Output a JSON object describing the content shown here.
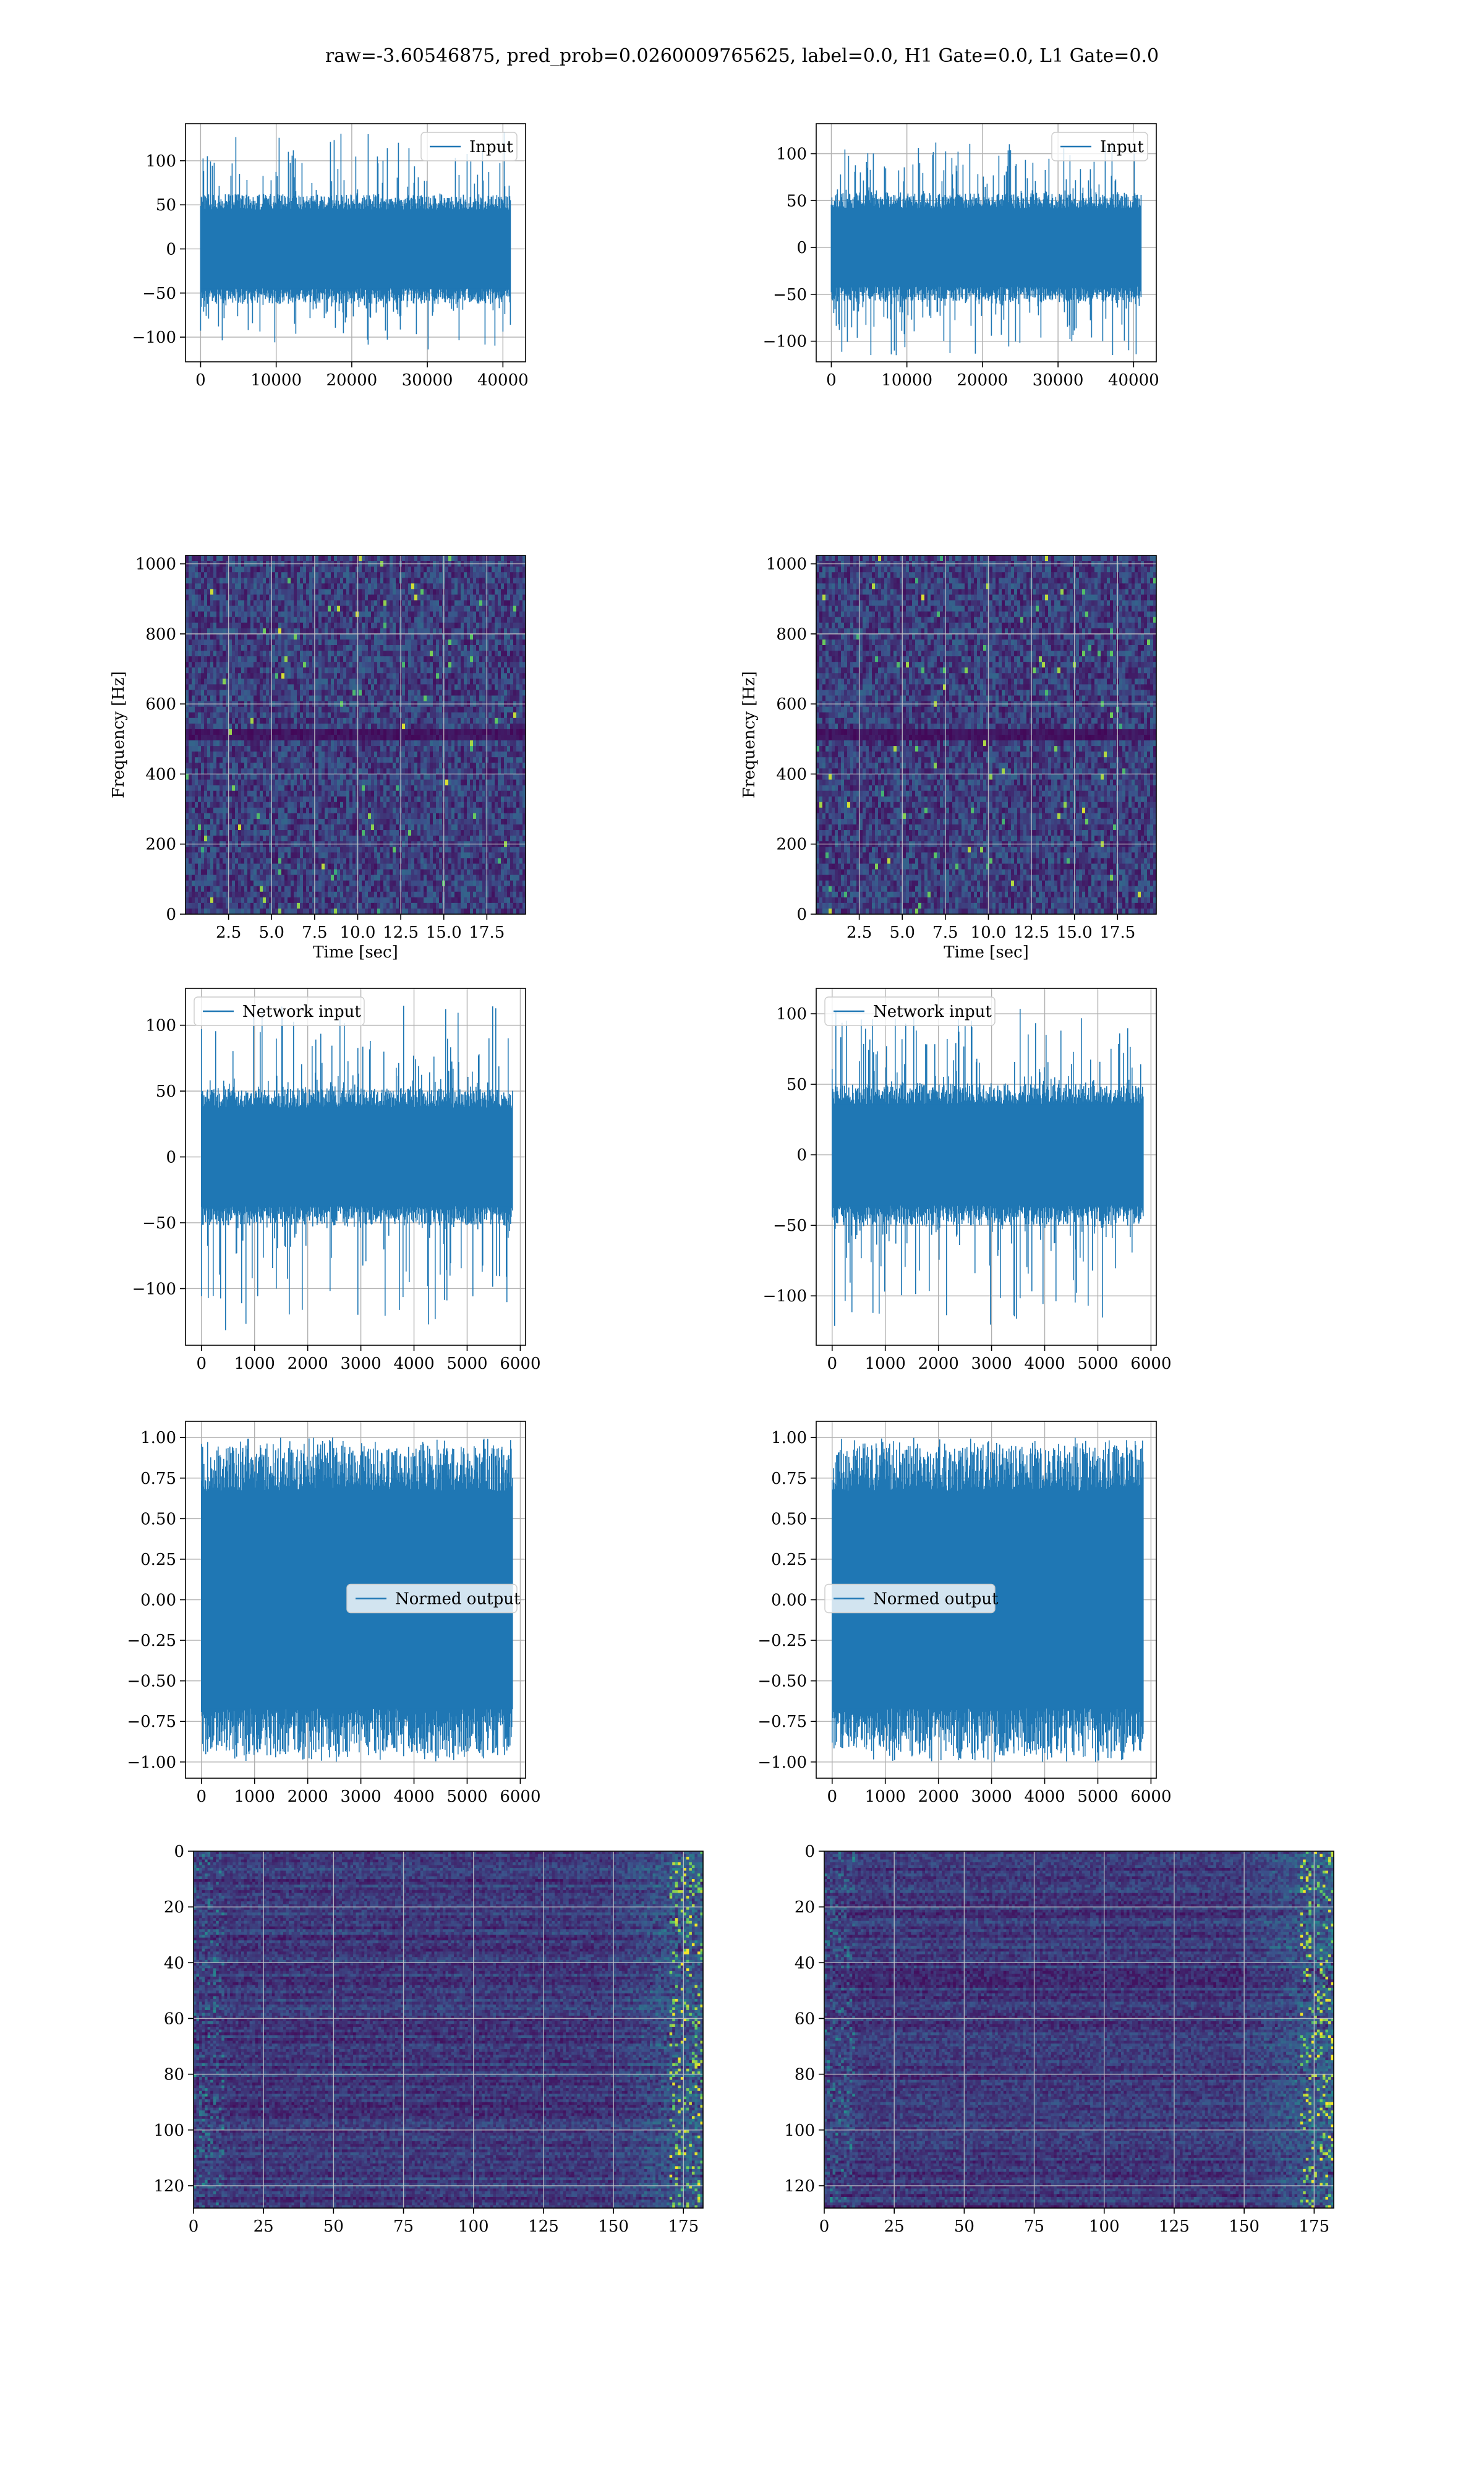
{
  "suptitle": "raw=-3.60546875, pred_prob=0.0260009765625, label=0.0, H1 Gate=0.0, L1 Gate=0.0",
  "colors": {
    "line": "#1f77b4",
    "grid": "#b0b0b0",
    "viridis_dark": "#440154",
    "viridis_mid": "#3b528b",
    "viridis_teal": "#21918c",
    "viridis_green": "#5ec962",
    "viridis_yellow": "#fde725"
  },
  "chart_data": [
    {
      "id": "r1c1",
      "type": "line",
      "legend": [
        "Input"
      ],
      "legend_loc": "upper right",
      "xlim": [
        -2000,
        43000
      ],
      "ylim": [
        -128,
        142
      ],
      "xticks": [
        0,
        10000,
        20000,
        30000,
        40000
      ],
      "yticks": [
        -100,
        -50,
        0,
        50,
        100
      ],
      "xtick_labels": [
        "0",
        "10000",
        "20000",
        "30000",
        "40000"
      ],
      "ytick_labels": [
        "−100",
        "−50",
        "0",
        "50",
        "100"
      ],
      "xlabel": "",
      "ylabel": "",
      "grid": true,
      "signal": {
        "x_start": 0,
        "x_end": 40959,
        "band": 62,
        "spike_max": 133,
        "spike_min": -118,
        "seed": 11
      }
    },
    {
      "id": "r1c2",
      "type": "line",
      "legend": [
        "Input"
      ],
      "legend_loc": "upper right",
      "xlim": [
        -2000,
        43000
      ],
      "ylim": [
        -122,
        132
      ],
      "xticks": [
        0,
        10000,
        20000,
        30000,
        40000
      ],
      "yticks": [
        -100,
        -50,
        0,
        50,
        100
      ],
      "xtick_labels": [
        "0",
        "10000",
        "20000",
        "30000",
        "40000"
      ],
      "ytick_labels": [
        "−100",
        "−50",
        "0",
        "50",
        "100"
      ],
      "xlabel": "",
      "ylabel": "",
      "grid": true,
      "signal": {
        "x_start": 0,
        "x_end": 40959,
        "band": 58,
        "spike_max": 114,
        "spike_min": -115,
        "seed": 23
      }
    },
    {
      "id": "r2c1",
      "type": "heatmap",
      "xlim": [
        0,
        19.75
      ],
      "ylim": [
        0,
        1024
      ],
      "xticks": [
        2.5,
        5,
        7.5,
        10,
        12.5,
        15,
        17.5
      ],
      "yticks": [
        0,
        200,
        400,
        600,
        800,
        1000
      ],
      "xtick_labels": [
        "2.5",
        "5.0",
        "7.5",
        "10.0",
        "12.5",
        "15.0",
        "17.5"
      ],
      "ytick_labels": [
        "0",
        "200",
        "400",
        "600",
        "800",
        "1000"
      ],
      "xlabel": "Time [sec]",
      "ylabel": "Frequency [Hz]",
      "grid": true,
      "colormap": "viridis",
      "seed": 5
    },
    {
      "id": "r2c2",
      "type": "heatmap",
      "xlim": [
        0,
        19.75
      ],
      "ylim": [
        0,
        1024
      ],
      "xticks": [
        2.5,
        5,
        7.5,
        10,
        12.5,
        15,
        17.5
      ],
      "yticks": [
        0,
        200,
        400,
        600,
        800,
        1000
      ],
      "xtick_labels": [
        "2.5",
        "5.0",
        "7.5",
        "10.0",
        "12.5",
        "15.0",
        "17.5"
      ],
      "ytick_labels": [
        "0",
        "200",
        "400",
        "600",
        "800",
        "1000"
      ],
      "xlabel": "Time [sec]",
      "ylabel": "Frequency [Hz]",
      "grid": true,
      "colormap": "viridis",
      "seed": 9
    },
    {
      "id": "r3c1",
      "type": "line",
      "legend": [
        "Network input"
      ],
      "legend_loc": "upper left",
      "xlim": [
        -300,
        6100
      ],
      "ylim": [
        -143,
        128
      ],
      "xticks": [
        0,
        1000,
        2000,
        3000,
        4000,
        5000,
        6000
      ],
      "yticks": [
        -100,
        -50,
        0,
        50,
        100
      ],
      "xtick_labels": [
        "0",
        "1000",
        "2000",
        "3000",
        "4000",
        "5000",
        "6000"
      ],
      "ytick_labels": [
        "−100",
        "−50",
        "0",
        "50",
        "100"
      ],
      "xlabel": "",
      "ylabel": "",
      "grid": true,
      "signal": {
        "x_start": 0,
        "x_end": 5850,
        "band": 52,
        "spike_max": 117,
        "spike_min": -132,
        "seed": 31
      }
    },
    {
      "id": "r3c2",
      "type": "line",
      "legend": [
        "Network input"
      ],
      "legend_loc": "upper left",
      "xlim": [
        -300,
        6100
      ],
      "ylim": [
        -135,
        118
      ],
      "xticks": [
        0,
        1000,
        2000,
        3000,
        4000,
        5000,
        6000
      ],
      "yticks": [
        -100,
        -50,
        0,
        50,
        100
      ],
      "xtick_labels": [
        "0",
        "1000",
        "2000",
        "3000",
        "4000",
        "5000",
        "6000"
      ],
      "ytick_labels": [
        "−100",
        "−50",
        "0",
        "50",
        "100"
      ],
      "xlabel": "",
      "ylabel": "",
      "grid": true,
      "signal": {
        "x_start": 0,
        "x_end": 5850,
        "band": 50,
        "spike_max": 105,
        "spike_min": -122,
        "seed": 47
      }
    },
    {
      "id": "r4c1",
      "type": "line",
      "legend": [
        "Normed output"
      ],
      "legend_loc": "center right",
      "xlim": [
        -300,
        6100
      ],
      "ylim": [
        -1.1,
        1.1
      ],
      "xticks": [
        0,
        1000,
        2000,
        3000,
        4000,
        5000,
        6000
      ],
      "yticks": [
        -1.0,
        -0.75,
        -0.5,
        -0.25,
        0.0,
        0.25,
        0.5,
        0.75,
        1.0
      ],
      "xtick_labels": [
        "0",
        "1000",
        "2000",
        "3000",
        "4000",
        "5000",
        "6000"
      ],
      "ytick_labels": [
        "−1.00",
        "−0.75",
        "−0.50",
        "−0.25",
        "0.00",
        "0.25",
        "0.50",
        "0.75",
        "1.00"
      ],
      "xlabel": "",
      "ylabel": "",
      "grid": true,
      "signal": {
        "x_start": 0,
        "x_end": 5850,
        "band": 0.93,
        "spike_max": 1.0,
        "spike_min": -1.0,
        "seed": 53
      }
    },
    {
      "id": "r4c2",
      "type": "line",
      "legend": [
        "Normed output"
      ],
      "legend_loc": "center left",
      "xlim": [
        -300,
        6100
      ],
      "ylim": [
        -1.1,
        1.1
      ],
      "xticks": [
        0,
        1000,
        2000,
        3000,
        4000,
        5000,
        6000
      ],
      "yticks": [
        -1.0,
        -0.75,
        -0.5,
        -0.25,
        0.0,
        0.25,
        0.5,
        0.75,
        1.0
      ],
      "xtick_labels": [
        "0",
        "1000",
        "2000",
        "3000",
        "4000",
        "5000",
        "6000"
      ],
      "ytick_labels": [
        "−1.00",
        "−0.75",
        "−0.50",
        "−0.25",
        "0.00",
        "0.25",
        "0.50",
        "0.75",
        "1.00"
      ],
      "xlabel": "",
      "ylabel": "",
      "grid": true,
      "signal": {
        "x_start": 0,
        "x_end": 5850,
        "band": 0.93,
        "spike_max": 1.0,
        "spike_min": -1.0,
        "seed": 61
      }
    },
    {
      "id": "r5c1",
      "type": "heatmap",
      "xlim": [
        0,
        182
      ],
      "ylim": [
        128,
        0
      ],
      "y_inverted": true,
      "xticks": [
        0,
        25,
        50,
        75,
        100,
        125,
        150,
        175
      ],
      "yticks": [
        0,
        20,
        40,
        60,
        80,
        100,
        120
      ],
      "xtick_labels": [
        "0",
        "25",
        "50",
        "75",
        "100",
        "125",
        "150",
        "175"
      ],
      "ytick_labels": [
        "0",
        "20",
        "40",
        "60",
        "80",
        "100",
        "120"
      ],
      "xlabel": "",
      "ylabel": "",
      "grid": true,
      "colormap": "viridis",
      "seed": 71
    },
    {
      "id": "r5c2",
      "type": "heatmap",
      "xlim": [
        0,
        182
      ],
      "ylim": [
        128,
        0
      ],
      "y_inverted": true,
      "xticks": [
        0,
        25,
        50,
        75,
        100,
        125,
        150,
        175
      ],
      "yticks": [
        0,
        20,
        40,
        60,
        80,
        100,
        120
      ],
      "xtick_labels": [
        "0",
        "25",
        "50",
        "75",
        "100",
        "125",
        "150",
        "175"
      ],
      "ytick_labels": [
        "0",
        "20",
        "40",
        "60",
        "80",
        "100",
        "120"
      ],
      "xlabel": "",
      "ylabel": "",
      "grid": true,
      "colormap": "viridis",
      "seed": 83
    }
  ]
}
